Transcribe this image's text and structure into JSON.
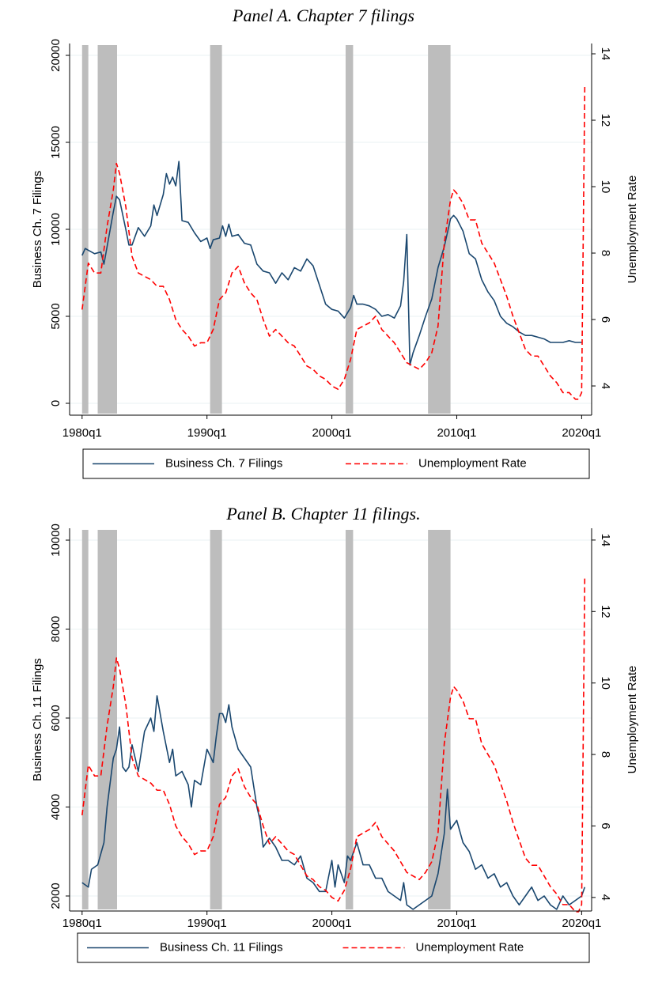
{
  "chart_data": [
    {
      "type": "line",
      "title": "Panel A. Chapter 7 filings",
      "ylabel": "Business Ch. 7 Filings",
      "y2label": "Unemployment Rate",
      "xlim": [
        1979,
        2020.8
      ],
      "xticks": [
        {
          "value": 1980,
          "label": "1980q1"
        },
        {
          "value": 1990,
          "label": "1990q1"
        },
        {
          "value": 2000,
          "label": "2000q1"
        },
        {
          "value": 2010,
          "label": "2010q1"
        },
        {
          "value": 2020,
          "label": "2020q1"
        }
      ],
      "ylim": [
        -682,
        20682
      ],
      "yticks": [
        0,
        5000,
        10000,
        15000,
        20000
      ],
      "y2lim": [
        3.12,
        14.31
      ],
      "y2ticks": [
        4,
        6,
        8,
        10,
        12,
        14
      ],
      "grid": true,
      "shade_color": "#bdbdbd",
      "shaded_periods": [
        [
          1980.0,
          1980.5
        ],
        [
          1981.25,
          1982.8
        ],
        [
          1990.25,
          1991.2
        ],
        [
          2001.1,
          2001.7
        ],
        [
          2007.7,
          2009.5
        ]
      ],
      "series": [
        {
          "name": "Business Ch. 7 Filings",
          "color": "#1a476f",
          "x": [
            1980,
            1980.25,
            1980.5,
            1981,
            1981.5,
            1981.75,
            1982,
            1982.5,
            1982.75,
            1983,
            1983.5,
            1983.75,
            1984,
            1984.5,
            1985,
            1985.5,
            1985.75,
            1986,
            1986.5,
            1986.75,
            1987,
            1987.25,
            1987.5,
            1987.75,
            1988,
            1988.5,
            1989,
            1989.5,
            1990,
            1990.25,
            1990.5,
            1991,
            1991.25,
            1991.5,
            1991.75,
            1992,
            1992.5,
            1993,
            1993.5,
            1994,
            1994.5,
            1995,
            1995.5,
            1996,
            1996.5,
            1997,
            1997.5,
            1998,
            1998.5,
            1999,
            1999.5,
            2000,
            2000.5,
            2001,
            2001.5,
            2001.75,
            2002,
            2002.5,
            2003,
            2003.5,
            2004,
            2004.5,
            2005,
            2005.5,
            2005.75,
            2006,
            2006.25,
            2006.5,
            2007,
            2007.5,
            2008,
            2008.5,
            2009,
            2009.5,
            2009.75,
            2010,
            2010.5,
            2011,
            2011.5,
            2012,
            2012.5,
            2013,
            2013.5,
            2014,
            2014.5,
            2015,
            2015.5,
            2016,
            2016.5,
            2017,
            2017.5,
            2018,
            2018.5,
            2019,
            2019.5,
            2020
          ],
          "values": [
            8500,
            8900,
            8800,
            8600,
            8700,
            8000,
            9000,
            11000,
            11900,
            11700,
            10000,
            9100,
            9100,
            10100,
            9600,
            10200,
            11400,
            10800,
            12000,
            13200,
            12600,
            13000,
            12500,
            13900,
            10500,
            10400,
            9800,
            9300,
            9500,
            8900,
            9400,
            9500,
            10200,
            9600,
            10300,
            9600,
            9700,
            9200,
            9100,
            8000,
            7600,
            7500,
            6900,
            7500,
            7100,
            7800,
            7600,
            8300,
            7900,
            6800,
            5700,
            5400,
            5300,
            4900,
            5500,
            6200,
            5700,
            5700,
            5600,
            5400,
            5000,
            5100,
            4900,
            5600,
            7000,
            9700,
            2200,
            2900,
            3900,
            5000,
            6000,
            7800,
            9000,
            10600,
            10800,
            10600,
            9900,
            8600,
            8300,
            7100,
            6400,
            5900,
            5000,
            4600,
            4400,
            4100,
            3900,
            3900,
            3800,
            3700,
            3500,
            3500,
            3500,
            3600,
            3500,
            3500
          ]
        },
        {
          "name": "Unemployment Rate",
          "color": "#ff0000",
          "axis": "y2",
          "dash": true,
          "x": [
            1980,
            1980.5,
            1981,
            1981.5,
            1982,
            1982.5,
            1982.75,
            1983,
            1983.5,
            1984,
            1984.5,
            1985,
            1985.5,
            1986,
            1986.5,
            1987,
            1987.5,
            1988,
            1988.5,
            1989,
            1989.5,
            1990,
            1990.5,
            1991,
            1991.5,
            1992,
            1992.5,
            1993,
            1993.5,
            1994,
            1994.5,
            1995,
            1995.5,
            1996,
            1996.5,
            1997,
            1997.5,
            1998,
            1998.5,
            1999,
            1999.5,
            2000,
            2000.5,
            2001,
            2001.5,
            2002,
            2002.5,
            2003,
            2003.5,
            2004,
            2004.5,
            2005,
            2005.5,
            2006,
            2006.5,
            2007,
            2007.5,
            2008,
            2008.5,
            2009,
            2009.5,
            2009.75,
            2010,
            2010.5,
            2011,
            2011.5,
            2012,
            2012.5,
            2013,
            2013.5,
            2014,
            2014.5,
            2015,
            2015.5,
            2016,
            2016.5,
            2017,
            2017.5,
            2018,
            2018.5,
            2019,
            2019.5,
            2019.75,
            2020,
            2020.25
          ],
          "values": [
            6.3,
            7.7,
            7.4,
            7.4,
            8.8,
            9.9,
            10.7,
            10.4,
            9.4,
            7.9,
            7.4,
            7.3,
            7.2,
            7.0,
            7.0,
            6.6,
            6.0,
            5.7,
            5.5,
            5.2,
            5.3,
            5.3,
            5.7,
            6.6,
            6.8,
            7.4,
            7.6,
            7.1,
            6.8,
            6.6,
            6.0,
            5.5,
            5.7,
            5.5,
            5.3,
            5.2,
            4.9,
            4.6,
            4.5,
            4.3,
            4.2,
            4.0,
            3.9,
            4.2,
            4.8,
            5.7,
            5.8,
            5.9,
            6.1,
            5.7,
            5.5,
            5.3,
            5.0,
            4.7,
            4.6,
            4.5,
            4.7,
            5.0,
            5.8,
            8.3,
            9.6,
            9.9,
            9.8,
            9.5,
            9.0,
            9.0,
            8.3,
            8.0,
            7.7,
            7.2,
            6.7,
            6.1,
            5.6,
            5.1,
            4.9,
            4.9,
            4.6,
            4.3,
            4.1,
            3.8,
            3.8,
            3.6,
            3.6,
            3.8,
            13.0
          ]
        }
      ]
    },
    {
      "type": "line",
      "title": "Panel B. Chapter 11 filings.",
      "ylabel": "Business Ch. 11 Filings",
      "y2label": "Unemployment Rate",
      "xlim": [
        1979,
        2020.8
      ],
      "xticks": [
        {
          "value": 1980,
          "label": "1980q1"
        },
        {
          "value": 1990,
          "label": "1990q1"
        },
        {
          "value": 2000,
          "label": "2000q1"
        },
        {
          "value": 2010,
          "label": "2010q1"
        },
        {
          "value": 2020,
          "label": "2020q1"
        }
      ],
      "ylim": [
        1662,
        10267
      ],
      "yticks": [
        2000,
        4000,
        6000,
        8000,
        10000
      ],
      "y2lim": [
        3.62,
        14.33
      ],
      "y2ticks": [
        4,
        6,
        8,
        10,
        12,
        14
      ],
      "grid": true,
      "shade_color": "#bdbdbd",
      "shaded_periods": [
        [
          1980.0,
          1980.5
        ],
        [
          1981.25,
          1982.8
        ],
        [
          1990.25,
          1991.2
        ],
        [
          2001.1,
          2001.7
        ],
        [
          2007.7,
          2009.5
        ]
      ],
      "series": [
        {
          "name": "Business Ch. 11 Filings",
          "color": "#1a476f",
          "x": [
            1980,
            1980.5,
            1980.75,
            1981.25,
            1981.75,
            1982,
            1982.5,
            1982.75,
            1983,
            1983.25,
            1983.5,
            1983.75,
            1984,
            1984.5,
            1985,
            1985.5,
            1985.75,
            1986,
            1986.5,
            1987,
            1987.25,
            1987.5,
            1988,
            1988.5,
            1988.75,
            1989,
            1989.5,
            1990,
            1990.5,
            1990.75,
            1991,
            1991.25,
            1991.5,
            1991.75,
            1992,
            1992.5,
            1993,
            1993.5,
            1994,
            1994.25,
            1994.5,
            1995,
            1995.5,
            1996,
            1996.5,
            1997,
            1997.5,
            1998,
            1998.5,
            1999,
            1999.5,
            2000,
            2000.25,
            2000.5,
            2001,
            2001.25,
            2001.5,
            2002,
            2002.5,
            2003,
            2003.5,
            2004,
            2004.5,
            2005,
            2005.5,
            2005.75,
            2006,
            2006.5,
            2007,
            2007.5,
            2008,
            2008.5,
            2009,
            2009.25,
            2009.5,
            2010,
            2010.5,
            2011,
            2011.5,
            2012,
            2012.5,
            2013,
            2013.5,
            2014,
            2014.5,
            2015,
            2015.5,
            2016,
            2016.5,
            2017,
            2017.5,
            2018,
            2018.5,
            2019,
            2019.5,
            2020,
            2020.25
          ],
          "values": [
            2300,
            2200,
            2600,
            2700,
            3200,
            4000,
            5100,
            5300,
            5800,
            4900,
            4800,
            4900,
            5400,
            4800,
            5700,
            6000,
            5700,
            6500,
            5700,
            5000,
            5300,
            4700,
            4800,
            4500,
            4000,
            4600,
            4500,
            5300,
            5000,
            5600,
            6100,
            6100,
            5900,
            6300,
            5800,
            5300,
            5100,
            4900,
            4000,
            3700,
            3100,
            3300,
            3100,
            2800,
            2800,
            2700,
            2900,
            2400,
            2300,
            2100,
            2100,
            2800,
            2200,
            2700,
            2300,
            2900,
            2800,
            3200,
            2700,
            2700,
            2400,
            2400,
            2100,
            2000,
            1900,
            2300,
            1800,
            1700,
            1800,
            1900,
            2000,
            2500,
            3400,
            4400,
            3500,
            3700,
            3200,
            3000,
            2600,
            2700,
            2400,
            2500,
            2200,
            2300,
            2000,
            1800,
            2000,
            2200,
            1900,
            2000,
            1800,
            1700,
            2000,
            1800,
            1900,
            2000,
            2200
          ]
        },
        {
          "name": "Unemployment Rate",
          "color": "#ff0000",
          "axis": "y2",
          "dash": true,
          "x": [
            1980,
            1980.5,
            1981,
            1981.5,
            1982,
            1982.5,
            1982.75,
            1983,
            1983.5,
            1984,
            1984.5,
            1985,
            1985.5,
            1986,
            1986.5,
            1987,
            1987.5,
            1988,
            1988.5,
            1989,
            1989.5,
            1990,
            1990.5,
            1991,
            1991.5,
            1992,
            1992.5,
            1993,
            1993.5,
            1994,
            1994.5,
            1995,
            1995.5,
            1996,
            1996.5,
            1997,
            1997.5,
            1998,
            1998.5,
            1999,
            1999.5,
            2000,
            2000.5,
            2001,
            2001.5,
            2002,
            2002.5,
            2003,
            2003.5,
            2004,
            2004.5,
            2005,
            2005.5,
            2006,
            2006.5,
            2007,
            2007.5,
            2008,
            2008.5,
            2009,
            2009.5,
            2009.75,
            2010,
            2010.5,
            2011,
            2011.5,
            2012,
            2012.5,
            2013,
            2013.5,
            2014,
            2014.5,
            2015,
            2015.5,
            2016,
            2016.5,
            2017,
            2017.5,
            2018,
            2018.5,
            2019,
            2019.5,
            2019.75,
            2020,
            2020.25
          ],
          "values": [
            6.3,
            7.7,
            7.4,
            7.4,
            8.8,
            9.9,
            10.7,
            10.4,
            9.4,
            7.9,
            7.4,
            7.3,
            7.2,
            7.0,
            7.0,
            6.6,
            6.0,
            5.7,
            5.5,
            5.2,
            5.3,
            5.3,
            5.7,
            6.6,
            6.8,
            7.4,
            7.6,
            7.1,
            6.8,
            6.6,
            6.0,
            5.5,
            5.7,
            5.5,
            5.3,
            5.2,
            4.9,
            4.6,
            4.5,
            4.3,
            4.2,
            4.0,
            3.9,
            4.2,
            4.8,
            5.7,
            5.8,
            5.9,
            6.1,
            5.7,
            5.5,
            5.3,
            5.0,
            4.7,
            4.6,
            4.5,
            4.7,
            5.0,
            5.8,
            8.3,
            9.6,
            9.9,
            9.8,
            9.5,
            9.0,
            9.0,
            8.3,
            8.0,
            7.7,
            7.2,
            6.7,
            6.1,
            5.6,
            5.1,
            4.9,
            4.9,
            4.6,
            4.3,
            4.1,
            3.8,
            3.8,
            3.6,
            3.6,
            3.8,
            13.0
          ]
        }
      ]
    }
  ]
}
